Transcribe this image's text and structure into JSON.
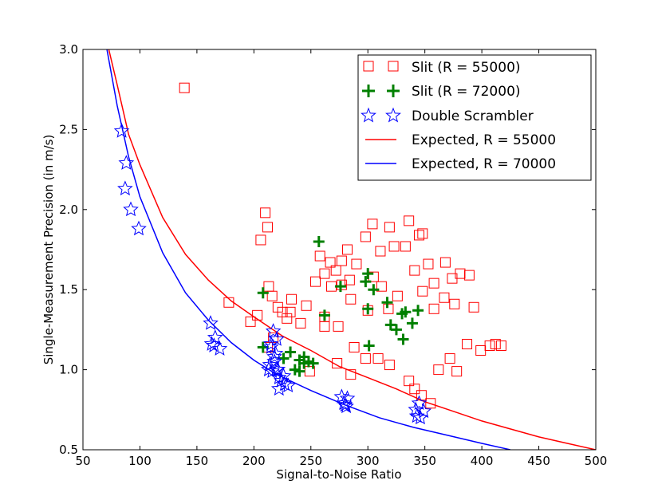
{
  "chart_data": {
    "type": "scatter",
    "xlabel": "Signal-to-Noise Ratio",
    "ylabel": "Single-Measurement Precision (in m/s)",
    "xlim": [
      50,
      500
    ],
    "ylim": [
      0.5,
      3.0
    ],
    "xticks": [
      "50",
      "100",
      "150",
      "200",
      "250",
      "300",
      "350",
      "400",
      "450",
      "500"
    ],
    "yticks": [
      "0.5",
      "1.0",
      "1.5",
      "2.0",
      "2.5",
      "3.0"
    ],
    "grid": false,
    "legend_position": "top-right",
    "colors": {
      "slit55": "#ff0000",
      "slit72": "#008000",
      "double": "#0000ff",
      "exp55": "#ff0000",
      "exp70": "#0000ff"
    },
    "series": [
      {
        "name": "Slit (R = 55000)",
        "kind": "scatter",
        "marker": "square",
        "points": [
          [
            139,
            2.76
          ],
          [
            206,
            1.81
          ],
          [
            210,
            1.98
          ],
          [
            212,
            1.89
          ],
          [
            178,
            1.42
          ],
          [
            197,
            1.3
          ],
          [
            203,
            1.34
          ],
          [
            213,
            1.52
          ],
          [
            216,
            1.46
          ],
          [
            225,
            1.36
          ],
          [
            233,
            1.44
          ],
          [
            246,
            1.4
          ],
          [
            262,
            1.33
          ],
          [
            285,
            1.44
          ],
          [
            232,
            1.36
          ],
          [
            241,
            1.29
          ],
          [
            262,
            1.6
          ],
          [
            267,
            1.67
          ],
          [
            272,
            1.62
          ],
          [
            282,
            1.75
          ],
          [
            298,
            1.83
          ],
          [
            304,
            1.91
          ],
          [
            311,
            1.74
          ],
          [
            319,
            1.89
          ],
          [
            323,
            1.77
          ],
          [
            336,
            1.93
          ],
          [
            345,
            1.84
          ],
          [
            348,
            1.85
          ],
          [
            353,
            1.66
          ],
          [
            368,
            1.67
          ],
          [
            374,
            1.57
          ],
          [
            381,
            1.6
          ],
          [
            389,
            1.59
          ],
          [
            393,
            1.39
          ],
          [
            387,
            1.16
          ],
          [
            399,
            1.12
          ],
          [
            407,
            1.15
          ],
          [
            412,
            1.16
          ],
          [
            417,
            1.15
          ],
          [
            262,
            1.27
          ],
          [
            274,
            1.27
          ],
          [
            288,
            1.14
          ],
          [
            298,
            1.07
          ],
          [
            309,
            1.07
          ],
          [
            319,
            1.03
          ],
          [
            336,
            0.93
          ],
          [
            341,
            0.88
          ],
          [
            347,
            0.84
          ],
          [
            355,
            0.79
          ],
          [
            273,
            1.04
          ],
          [
            285,
            0.97
          ],
          [
            249,
            0.99
          ],
          [
            254,
            1.55
          ],
          [
            258,
            1.71
          ],
          [
            277,
            1.53
          ],
          [
            284,
            1.56
          ],
          [
            318,
            1.38
          ],
          [
            326,
            1.46
          ],
          [
            358,
            1.38
          ],
          [
            367,
            1.45
          ],
          [
            376,
            1.41
          ],
          [
            221,
            1.39
          ],
          [
            229,
            1.32
          ],
          [
            217,
            1.2
          ],
          [
            212,
            1.14
          ],
          [
            372,
            1.07
          ],
          [
            378,
            0.99
          ],
          [
            362,
            1.0
          ],
          [
            358,
            1.54
          ],
          [
            341,
            1.62
          ],
          [
            333,
            1.77
          ],
          [
            290,
            1.66
          ],
          [
            277,
            1.68
          ],
          [
            268,
            1.52
          ],
          [
            305,
            1.58
          ],
          [
            348,
            1.49
          ],
          [
            312,
            1.52
          ],
          [
            300,
            1.37
          ]
        ]
      },
      {
        "name": "Slit (R = 72000)",
        "kind": "scatter",
        "marker": "plus",
        "points": [
          [
            257,
            1.8
          ],
          [
            208,
            1.48
          ],
          [
            276,
            1.52
          ],
          [
            298,
            1.55
          ],
          [
            300,
            1.6
          ],
          [
            305,
            1.5
          ],
          [
            317,
            1.42
          ],
          [
            300,
            1.38
          ],
          [
            320,
            1.28
          ],
          [
            325,
            1.25
          ],
          [
            330,
            1.35
          ],
          [
            333,
            1.36
          ],
          [
            339,
            1.29
          ],
          [
            344,
            1.37
          ],
          [
            331,
            1.19
          ],
          [
            301,
            1.15
          ],
          [
            208,
            1.14
          ],
          [
            232,
            1.11
          ],
          [
            240,
            1.06
          ],
          [
            236,
            1.0
          ],
          [
            240,
            0.99
          ],
          [
            244,
            1.04
          ],
          [
            248,
            1.05
          ],
          [
            252,
            1.04
          ],
          [
            226,
            1.07
          ],
          [
            262,
            1.34
          ],
          [
            244,
            1.08
          ]
        ]
      },
      {
        "name": "Double Scrambler",
        "kind": "scatter",
        "marker": "star",
        "points": [
          [
            84,
            2.49
          ],
          [
            88,
            2.29
          ],
          [
            87,
            2.13
          ],
          [
            92,
            2.0
          ],
          [
            99,
            1.88
          ],
          [
            162,
            1.29
          ],
          [
            163,
            1.16
          ],
          [
            166,
            1.2
          ],
          [
            170,
            1.13
          ],
          [
            165,
            1.15
          ],
          [
            217,
            1.24
          ],
          [
            215,
            1.14
          ],
          [
            214,
            1.03
          ],
          [
            218,
            1.08
          ],
          [
            220,
            1.0
          ],
          [
            222,
            0.95
          ],
          [
            224,
            0.93
          ],
          [
            227,
            0.91
          ],
          [
            230,
            0.9
          ],
          [
            222,
            0.88
          ],
          [
            219,
            1.1
          ],
          [
            216,
            0.99
          ],
          [
            220,
            1.19
          ],
          [
            218,
            1.05
          ],
          [
            213,
            1.0
          ],
          [
            215,
            1.16
          ],
          [
            221,
            1.0
          ],
          [
            226,
            0.96
          ],
          [
            277,
            0.83
          ],
          [
            280,
            0.78
          ],
          [
            282,
            0.82
          ],
          [
            279,
            0.79
          ],
          [
            281,
            0.77
          ],
          [
            342,
            0.75
          ],
          [
            345,
            0.79
          ],
          [
            346,
            0.7
          ],
          [
            349,
            0.74
          ],
          [
            343,
            0.71
          ]
        ]
      },
      {
        "name": "Expected, R = 55000",
        "kind": "line",
        "points": [
          [
            70,
            3.08
          ],
          [
            80,
            2.78
          ],
          [
            90,
            2.47
          ],
          [
            100,
            2.28
          ],
          [
            120,
            1.95
          ],
          [
            140,
            1.72
          ],
          [
            160,
            1.56
          ],
          [
            180,
            1.43
          ],
          [
            200,
            1.33
          ],
          [
            225,
            1.21
          ],
          [
            250,
            1.12
          ],
          [
            275,
            1.02
          ],
          [
            300,
            0.95
          ],
          [
            325,
            0.88
          ],
          [
            350,
            0.8
          ],
          [
            375,
            0.74
          ],
          [
            400,
            0.68
          ],
          [
            425,
            0.63
          ],
          [
            450,
            0.58
          ],
          [
            475,
            0.54
          ],
          [
            500,
            0.5
          ]
        ]
      },
      {
        "name": "Expected, R = 70000",
        "kind": "line",
        "points": [
          [
            70,
            3.04
          ],
          [
            80,
            2.65
          ],
          [
            90,
            2.33
          ],
          [
            100,
            2.08
          ],
          [
            120,
            1.73
          ],
          [
            140,
            1.48
          ],
          [
            160,
            1.31
          ],
          [
            180,
            1.17
          ],
          [
            200,
            1.06
          ],
          [
            220,
            0.97
          ],
          [
            250,
            0.87
          ],
          [
            280,
            0.78
          ],
          [
            310,
            0.7
          ],
          [
            340,
            0.64
          ],
          [
            370,
            0.59
          ],
          [
            400,
            0.54
          ],
          [
            425,
            0.5
          ]
        ]
      }
    ]
  }
}
